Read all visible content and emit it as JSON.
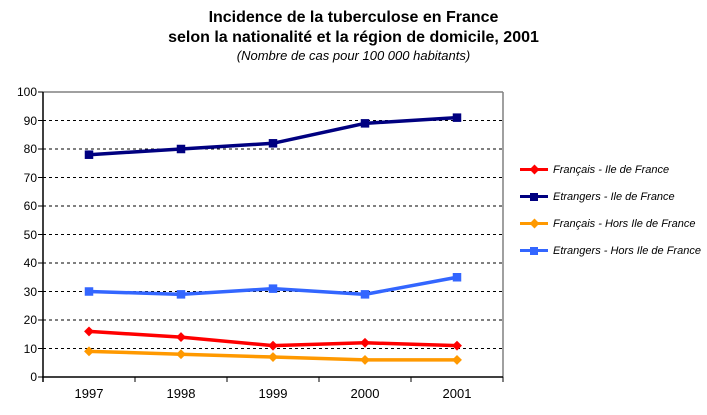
{
  "title": {
    "line1": "Incidence de la tuberculose en France",
    "line2": "selon la nationalité et la région de domicile, 2001",
    "subtitle": "(Nombre de cas pour 100 000 habitants)"
  },
  "chart_data": {
    "type": "line",
    "title": "Incidence de la tuberculose en France selon la nationalité et la région de domicile, 2001",
    "subtitle": "(Nombre de cas pour 100 000 habitants)",
    "categories": [
      "1997",
      "1998",
      "1999",
      "2000",
      "2001"
    ],
    "series": [
      {
        "name": "Français - Ile de France",
        "color": "#FF0000",
        "marker": "diamond",
        "values": [
          16,
          14,
          11,
          12,
          11
        ]
      },
      {
        "name": "Etrangers - Ile de France",
        "color": "#000080",
        "marker": "square",
        "values": [
          78,
          80,
          82,
          89,
          91
        ]
      },
      {
        "name": "Français - Hors Ile de France",
        "color": "#FF9900",
        "marker": "diamond",
        "values": [
          9,
          8,
          7,
          6,
          6
        ]
      },
      {
        "name": "Etrangers - Hors Ile de France",
        "color": "#3366FF",
        "marker": "square",
        "values": [
          30,
          29,
          31,
          29,
          35
        ]
      }
    ],
    "ylim": [
      0,
      100
    ],
    "yticks": [
      0,
      10,
      20,
      30,
      40,
      50,
      60,
      70,
      80,
      90,
      100
    ],
    "xlabel": "",
    "ylabel": "",
    "grid": "horizontal-dashed-black",
    "plot_border_color": "#808080",
    "axis_color": "#000000",
    "legend_position": "right"
  }
}
